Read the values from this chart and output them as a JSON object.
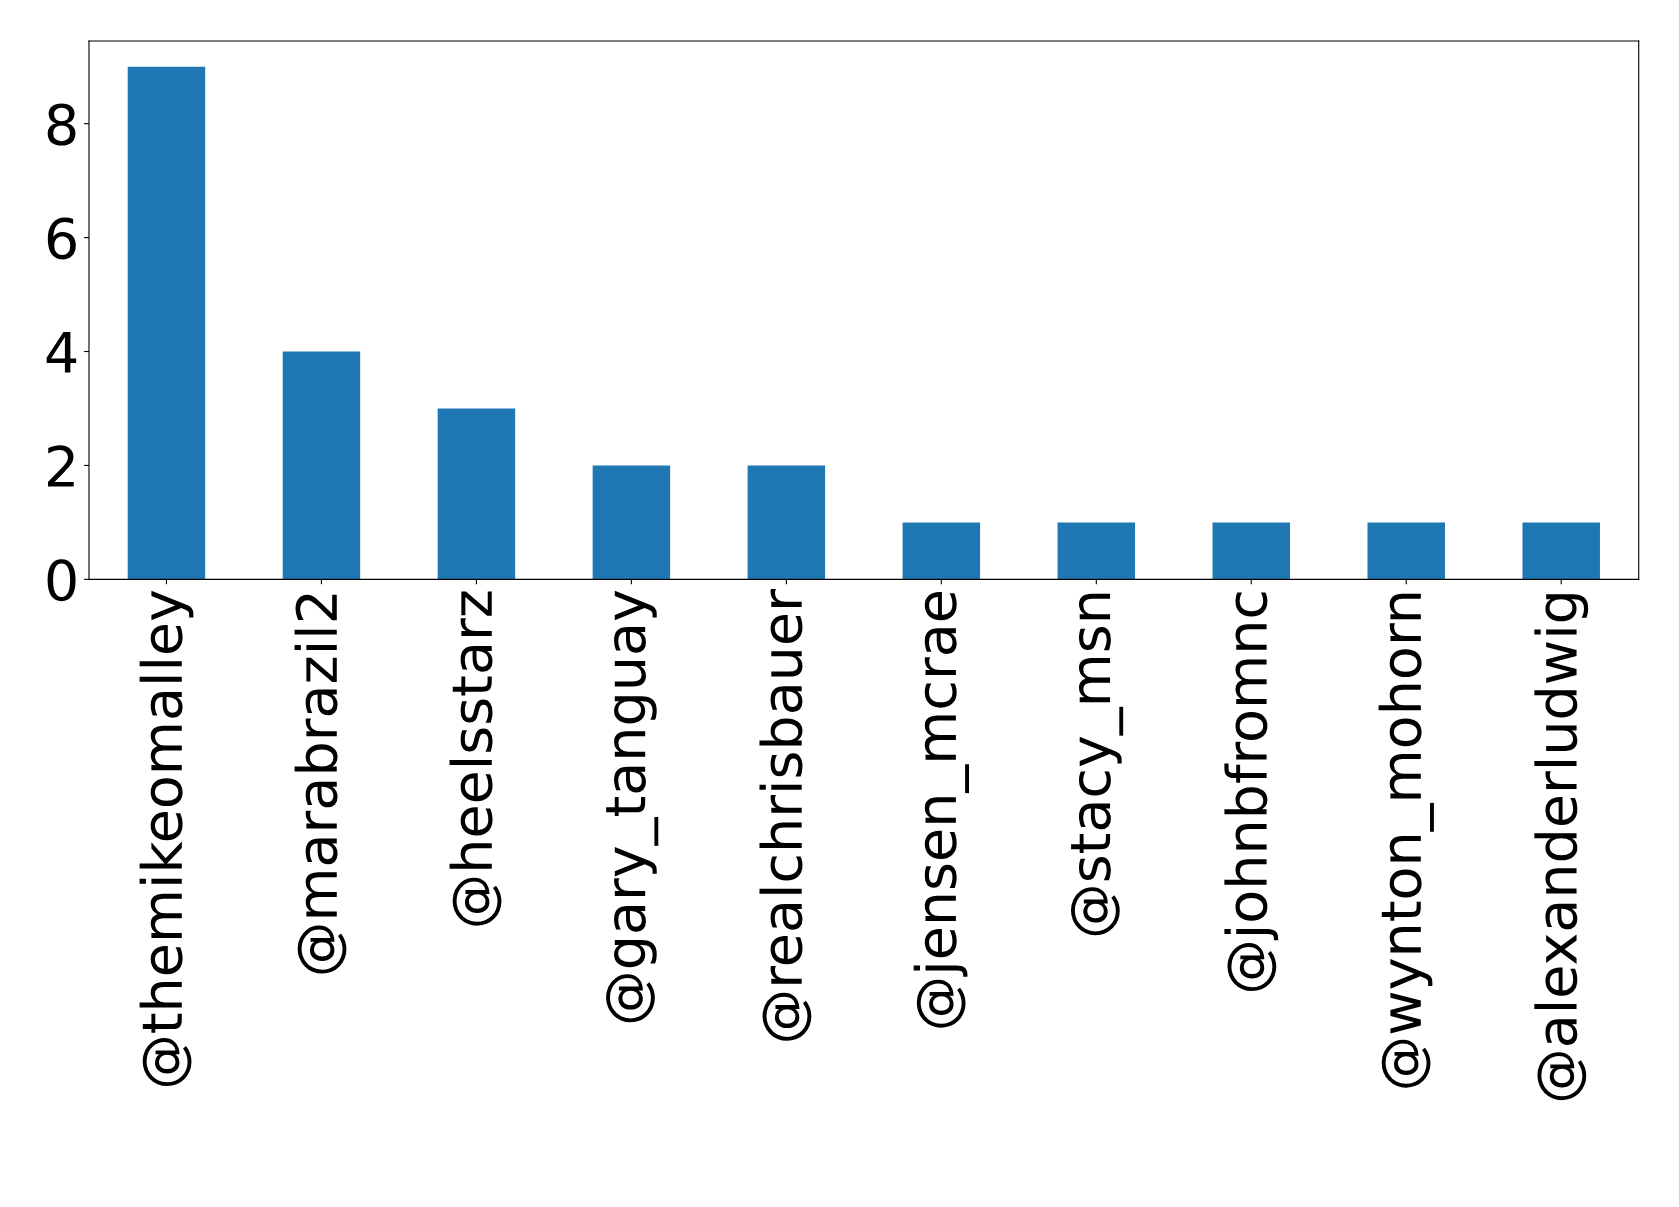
{
  "chart_data": {
    "type": "bar",
    "categories": [
      "@themikeomalley",
      "@marabrazil2",
      "@heelsstarz",
      "@gary_tanguay",
      "@realchrisbauer",
      "@jensen_mcrae",
      "@stacy_msn",
      "@johnbfromnc",
      "@wynton_mohorn",
      "@alexanderludwig"
    ],
    "values": [
      9,
      4,
      3,
      2,
      2,
      1,
      1,
      1,
      1,
      1
    ],
    "color": "#1f77b4",
    "ylim": [
      0,
      9.45
    ],
    "yticks": [
      0,
      2,
      4,
      6,
      8
    ],
    "grid": false,
    "legend": false
  }
}
